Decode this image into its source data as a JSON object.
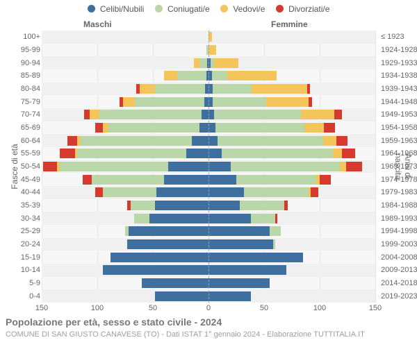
{
  "chart": {
    "type": "population-pyramid",
    "background_color": "#f7f7f7",
    "alt_row_color": "#f0f0f0",
    "grid_color": "#e5e5e5",
    "center_line_color": "#9ca3af",
    "text_color": "#666666",
    "legend": [
      {
        "label": "Celibi/Nubili",
        "color": "#3f6f9e"
      },
      {
        "label": "Coniugati/e",
        "color": "#b9d7a8"
      },
      {
        "label": "Vedovi/e",
        "color": "#f4c55a"
      },
      {
        "label": "Divorziati/e",
        "color": "#d63a2f"
      }
    ],
    "side_labels": {
      "left": "Maschi",
      "right": "Femmine"
    },
    "axis_titles": {
      "left": "Fasce di età",
      "right": "Anni di nascita"
    },
    "xlim": 150,
    "xticks": [
      150,
      100,
      50,
      0,
      50,
      100,
      150
    ],
    "xticks_signed": [
      -150,
      -100,
      -50,
      0,
      50,
      100,
      150
    ],
    "age_bands": [
      "0-4",
      "5-9",
      "10-14",
      "15-19",
      "20-24",
      "25-29",
      "30-34",
      "35-39",
      "40-44",
      "45-49",
      "50-54",
      "55-59",
      "60-64",
      "65-69",
      "70-74",
      "75-79",
      "80-84",
      "85-89",
      "90-94",
      "95-99",
      "100+"
    ],
    "birth_years": [
      "2019-2023",
      "2014-2018",
      "2009-2013",
      "2004-2008",
      "1999-2003",
      "1994-1998",
      "1989-1993",
      "1984-1988",
      "1979-1983",
      "1974-1978",
      "1969-1973",
      "1964-1968",
      "1959-1963",
      "1954-1958",
      "1949-1953",
      "1944-1948",
      "1939-1943",
      "1934-1938",
      "1929-1933",
      "1924-1928",
      "≤ 1923"
    ],
    "bars": {
      "male": [
        {
          "single": 48,
          "married": 0,
          "widowed": 0,
          "divorced": 0
        },
        {
          "single": 60,
          "married": 0,
          "widowed": 0,
          "divorced": 0
        },
        {
          "single": 95,
          "married": 0,
          "widowed": 0,
          "divorced": 0
        },
        {
          "single": 88,
          "married": 0,
          "widowed": 0,
          "divorced": 0
        },
        {
          "single": 73,
          "married": 0,
          "widowed": 0,
          "divorced": 0
        },
        {
          "single": 72,
          "married": 3,
          "widowed": 0,
          "divorced": 0
        },
        {
          "single": 53,
          "married": 14,
          "widowed": 0,
          "divorced": 0
        },
        {
          "single": 48,
          "married": 22,
          "widowed": 0,
          "divorced": 3
        },
        {
          "single": 47,
          "married": 48,
          "widowed": 0,
          "divorced": 7
        },
        {
          "single": 40,
          "married": 65,
          "widowed": 0,
          "divorced": 8
        },
        {
          "single": 36,
          "married": 98,
          "widowed": 2,
          "divorced": 13
        },
        {
          "single": 20,
          "married": 98,
          "widowed": 2,
          "divorced": 14
        },
        {
          "single": 15,
          "married": 100,
          "widowed": 3,
          "divorced": 9
        },
        {
          "single": 8,
          "married": 82,
          "widowed": 5,
          "divorced": 7
        },
        {
          "single": 6,
          "married": 92,
          "widowed": 9,
          "divorced": 5
        },
        {
          "single": 4,
          "married": 62,
          "widowed": 11,
          "divorced": 3
        },
        {
          "single": 3,
          "married": 45,
          "widowed": 14,
          "divorced": 3
        },
        {
          "single": 2,
          "married": 26,
          "widowed": 12,
          "divorced": 0
        },
        {
          "single": 1,
          "married": 7,
          "widowed": 5,
          "divorced": 0
        },
        {
          "single": 0,
          "married": 2,
          "widowed": 0,
          "divorced": 0
        },
        {
          "single": 0,
          "married": 0,
          "widowed": 0,
          "divorced": 0
        }
      ],
      "female": [
        {
          "single": 38,
          "married": 0,
          "widowed": 0,
          "divorced": 0
        },
        {
          "single": 55,
          "married": 0,
          "widowed": 0,
          "divorced": 0
        },
        {
          "single": 70,
          "married": 0,
          "widowed": 0,
          "divorced": 0
        },
        {
          "single": 85,
          "married": 0,
          "widowed": 0,
          "divorced": 0
        },
        {
          "single": 58,
          "married": 2,
          "widowed": 0,
          "divorced": 0
        },
        {
          "single": 55,
          "married": 10,
          "widowed": 0,
          "divorced": 0
        },
        {
          "single": 38,
          "married": 22,
          "widowed": 0,
          "divorced": 2
        },
        {
          "single": 28,
          "married": 40,
          "widowed": 0,
          "divorced": 3
        },
        {
          "single": 32,
          "married": 58,
          "widowed": 2,
          "divorced": 7
        },
        {
          "single": 25,
          "married": 72,
          "widowed": 3,
          "divorced": 10
        },
        {
          "single": 20,
          "married": 98,
          "widowed": 6,
          "divorced": 14
        },
        {
          "single": 12,
          "married": 100,
          "widowed": 8,
          "divorced": 12
        },
        {
          "single": 8,
          "married": 95,
          "widowed": 12,
          "divorced": 10
        },
        {
          "single": 6,
          "married": 80,
          "widowed": 18,
          "divorced": 10
        },
        {
          "single": 5,
          "married": 78,
          "widowed": 30,
          "divorced": 7
        },
        {
          "single": 4,
          "married": 48,
          "widowed": 38,
          "divorced": 3
        },
        {
          "single": 4,
          "married": 35,
          "widowed": 50,
          "divorced": 2
        },
        {
          "single": 3,
          "married": 14,
          "widowed": 44,
          "divorced": 0
        },
        {
          "single": 2,
          "married": 3,
          "widowed": 22,
          "divorced": 0
        },
        {
          "single": 0,
          "married": 0,
          "widowed": 7,
          "divorced": 0
        },
        {
          "single": 0,
          "married": 0,
          "widowed": 3,
          "divorced": 0
        }
      ]
    },
    "footer_title": "Popolazione per età, sesso e stato civile - 2024",
    "footer_sub": "COMUNE DI SAN GIUSTO CANAVESE (TO) - Dati ISTAT 1° gennaio 2024 - Elaborazione TUTTITALIA.IT"
  }
}
